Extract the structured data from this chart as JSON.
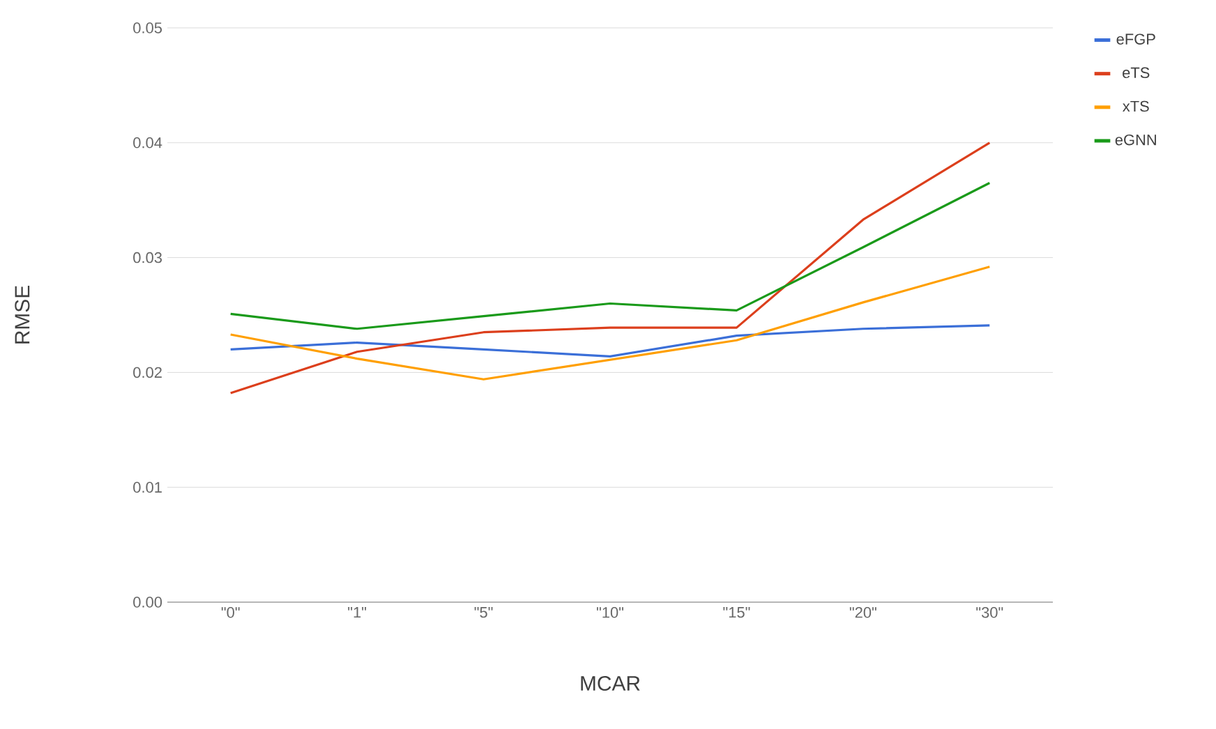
{
  "chart_data": {
    "type": "line",
    "xlabel": "MCAR",
    "ylabel": "RMSE",
    "categories": [
      "\"0\"",
      "\"1\"",
      "\"5\"",
      "\"10\"",
      "\"15\"",
      "\"20\"",
      "\"30\""
    ],
    "series": [
      {
        "name": "eFGP",
        "color": "#3b6fd8",
        "values": [
          0.022,
          0.0226,
          0.022,
          0.0214,
          0.0232,
          0.0238,
          0.0241
        ]
      },
      {
        "name": "eTS",
        "color": "#dc3f1c",
        "values": [
          0.0182,
          0.0218,
          0.0235,
          0.0239,
          0.0239,
          0.0333,
          0.04
        ]
      },
      {
        "name": "xTS",
        "color": "#ff9f00",
        "values": [
          0.0233,
          0.0212,
          0.0194,
          0.0211,
          0.0228,
          0.0261,
          0.0292
        ]
      },
      {
        "name": "eGNN",
        "color": "#1a9a1a",
        "values": [
          0.0251,
          0.0238,
          0.0249,
          0.026,
          0.0254,
          0.0309,
          0.0365
        ]
      }
    ],
    "ylim": [
      0,
      0.05
    ],
    "yticks": [
      {
        "value": 0,
        "label": "0.00"
      },
      {
        "value": 0.01,
        "label": "0.01"
      },
      {
        "value": 0.02,
        "label": "0.02"
      },
      {
        "value": 0.03,
        "label": "0.03"
      },
      {
        "value": 0.04,
        "label": "0.04"
      },
      {
        "value": 0.05,
        "label": "0.05"
      }
    ],
    "grid": "y",
    "legend": "top right"
  }
}
